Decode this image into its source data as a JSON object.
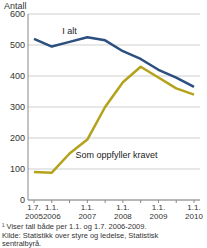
{
  "chart_data": {
    "type": "line",
    "y_label": "Antall",
    "categories": [
      "1.7. 2005",
      "1.1. 2006",
      null,
      "1.1. 2007",
      null,
      "1.1. 2008",
      null,
      "1.1. 2009",
      null,
      "1.1. 2010"
    ],
    "series": [
      {
        "name": "I alt",
        "color": "#2b4f7e",
        "values": [
          520,
          495,
          510,
          525,
          515,
          480,
          455,
          420,
          395,
          365
        ]
      },
      {
        "name": "Som oppfyller kravet",
        "color": "#b3a21a",
        "values": [
          90,
          88,
          150,
          195,
          300,
          380,
          430,
          395,
          360,
          340
        ]
      }
    ],
    "ylim": [
      0,
      600
    ],
    "yticks": [
      0,
      100,
      200,
      300,
      400,
      500,
      600
    ],
    "grid": true,
    "footnote": [
      "¹ Viser tall både per 1.1. og 1.7. 2006-2009.",
      "Kilde: Statistikk over styre og ledelse, Statistisk",
      "sentralbyrå."
    ]
  }
}
